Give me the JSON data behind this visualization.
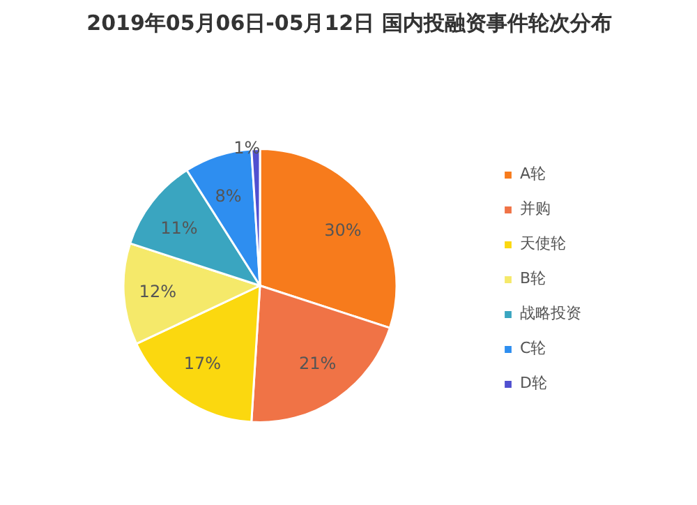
{
  "chart_data": {
    "type": "pie",
    "title": "2019年05月06日-05月12日 国内投融资事件轮次分布",
    "categories": [
      "A轮",
      "并购",
      "天使轮",
      "B轮",
      "战略投资",
      "C轮",
      "D轮"
    ],
    "values": [
      30,
      21,
      17,
      12,
      11,
      8,
      1
    ],
    "colors": [
      "#f77b1c",
      "#f07346",
      "#fbd80f",
      "#f5e96a",
      "#3aa5c0",
      "#2e8ef0",
      "#5050d0"
    ],
    "value_labels": [
      "30%",
      "21%",
      "17%",
      "12%",
      "11%",
      "8%",
      "1%"
    ],
    "legend": "right"
  }
}
